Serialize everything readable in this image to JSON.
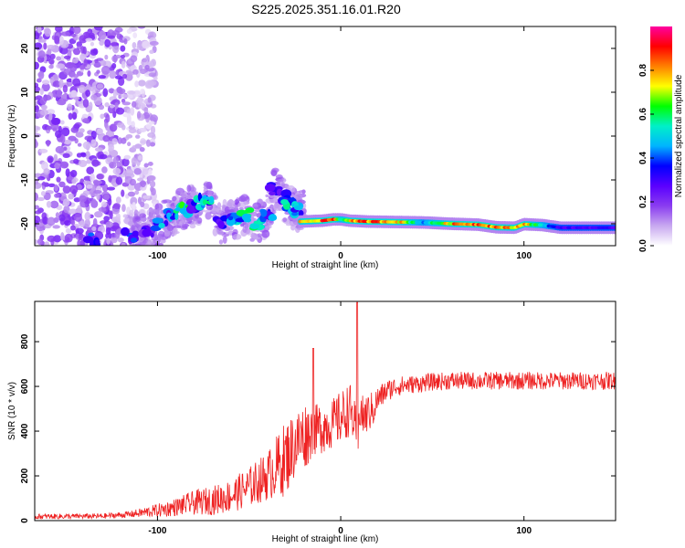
{
  "figure": {
    "title": "S225.2025.351.16.01.R20"
  },
  "chart_data": [
    {
      "type": "heatmap",
      "xlabel": "Height of straight line (km)",
      "ylabel": "Frequency (Hz)",
      "xlim": [
        -167,
        150
      ],
      "ylim": [
        -25,
        25
      ],
      "xticks": [
        -100,
        0,
        100
      ],
      "yticks": [
        -20,
        -10,
        0,
        10,
        20
      ],
      "colorbar": {
        "label": "Normalized spectral amplitude",
        "range": [
          0,
          1
        ],
        "ticks": [
          0,
          0.2,
          0.4,
          0.6,
          0.8
        ],
        "tick_labels": [
          "0.0",
          "0.2",
          "0.4",
          "0.6",
          "0.8"
        ],
        "colors": [
          "#ffffff",
          "#c8a8f0",
          "#8a3cf0",
          "#5a00ff",
          "#0000ff",
          "#00b4ff",
          "#00f0c8",
          "#00ff00",
          "#ffff00",
          "#ff8000",
          "#ff0000",
          "#ff00a0"
        ]
      },
      "ridge": {
        "x": [
          -22,
          -10,
          -4,
          0,
          5,
          15,
          30,
          45,
          60,
          75,
          85,
          95,
          100,
          110,
          120,
          135,
          150
        ],
        "y": [
          -19.5,
          -19.3,
          -19.0,
          -19.0,
          -19.3,
          -19.5,
          -19.6,
          -19.7,
          -20.0,
          -20.2,
          -20.8,
          -20.9,
          -20.1,
          -20.3,
          -20.9,
          -20.9,
          -20.9
        ],
        "amplitude": [
          0.75,
          0.85,
          0.9,
          0.55,
          0.8,
          0.85,
          0.85,
          0.45,
          0.8,
          0.9,
          0.85,
          0.75,
          0.85,
          0.5,
          0.3,
          0.3,
          0.3
        ]
      },
      "tail_features": {
        "x": [
          -135,
          -115,
          -105,
          -98,
          -92,
          -88,
          -84,
          -80,
          -76,
          -72,
          -65,
          -58,
          -52,
          -46,
          -40,
          -36,
          -32,
          -28,
          -24
        ],
        "y": [
          -23.5,
          -23,
          -22,
          -20,
          -18,
          -17,
          -16.5,
          -16,
          -15,
          -15,
          -20,
          -19,
          -18,
          -20,
          -18,
          -12,
          -14,
          -16,
          -17
        ],
        "amplitude": [
          0.35,
          0.35,
          0.3,
          0.45,
          0.4,
          0.55,
          0.6,
          0.35,
          0.5,
          0.55,
          0.3,
          0.45,
          0.55,
          0.6,
          0.4,
          0.3,
          0.4,
          0.5,
          0.45
        ]
      },
      "noise_region": {
        "x_from": -167,
        "x_to": -107,
        "y_from": -25,
        "y_to": 25,
        "amplitude": 0.2
      }
    },
    {
      "type": "line",
      "xlabel": "Height of straight line (km)",
      "ylabel": "SNR (10 * v/v)",
      "xlim": [
        -167,
        150
      ],
      "ylim": [
        0,
        980
      ],
      "xticks": [
        -100,
        0,
        100
      ],
      "yticks": [
        0,
        200,
        400,
        600,
        800
      ],
      "color": "#ee2222",
      "envelope": {
        "x": [
          -167,
          -130,
          -115,
          -100,
          -90,
          -80,
          -70,
          -60,
          -50,
          -40,
          -35,
          -30,
          -25,
          -20,
          -15,
          -10,
          -5,
          0,
          5,
          8,
          9,
          10,
          12,
          15,
          18,
          20,
          25,
          30,
          40,
          50,
          60,
          80,
          100,
          120,
          140,
          150
        ],
        "y": [
          18,
          20,
          28,
          45,
          60,
          80,
          90,
          110,
          150,
          200,
          240,
          280,
          340,
          380,
          400,
          420,
          430,
          460,
          500,
          420,
          120,
          520,
          460,
          480,
          500,
          540,
          580,
          600,
          610,
          620,
          625,
          625,
          625,
          625,
          625,
          625
        ],
        "noise_amplitude": [
          12,
          12,
          15,
          30,
          40,
          55,
          65,
          75,
          90,
          110,
          140,
          170,
          150,
          160,
          110,
          120,
          110,
          120,
          120,
          100,
          100,
          110,
          100,
          90,
          80,
          60,
          50,
          45,
          40,
          40,
          40,
          40,
          40,
          40,
          40,
          40
        ]
      },
      "spikes": {
        "x": [
          -15,
          9
        ],
        "y": [
          770,
          975
        ]
      }
    }
  ]
}
